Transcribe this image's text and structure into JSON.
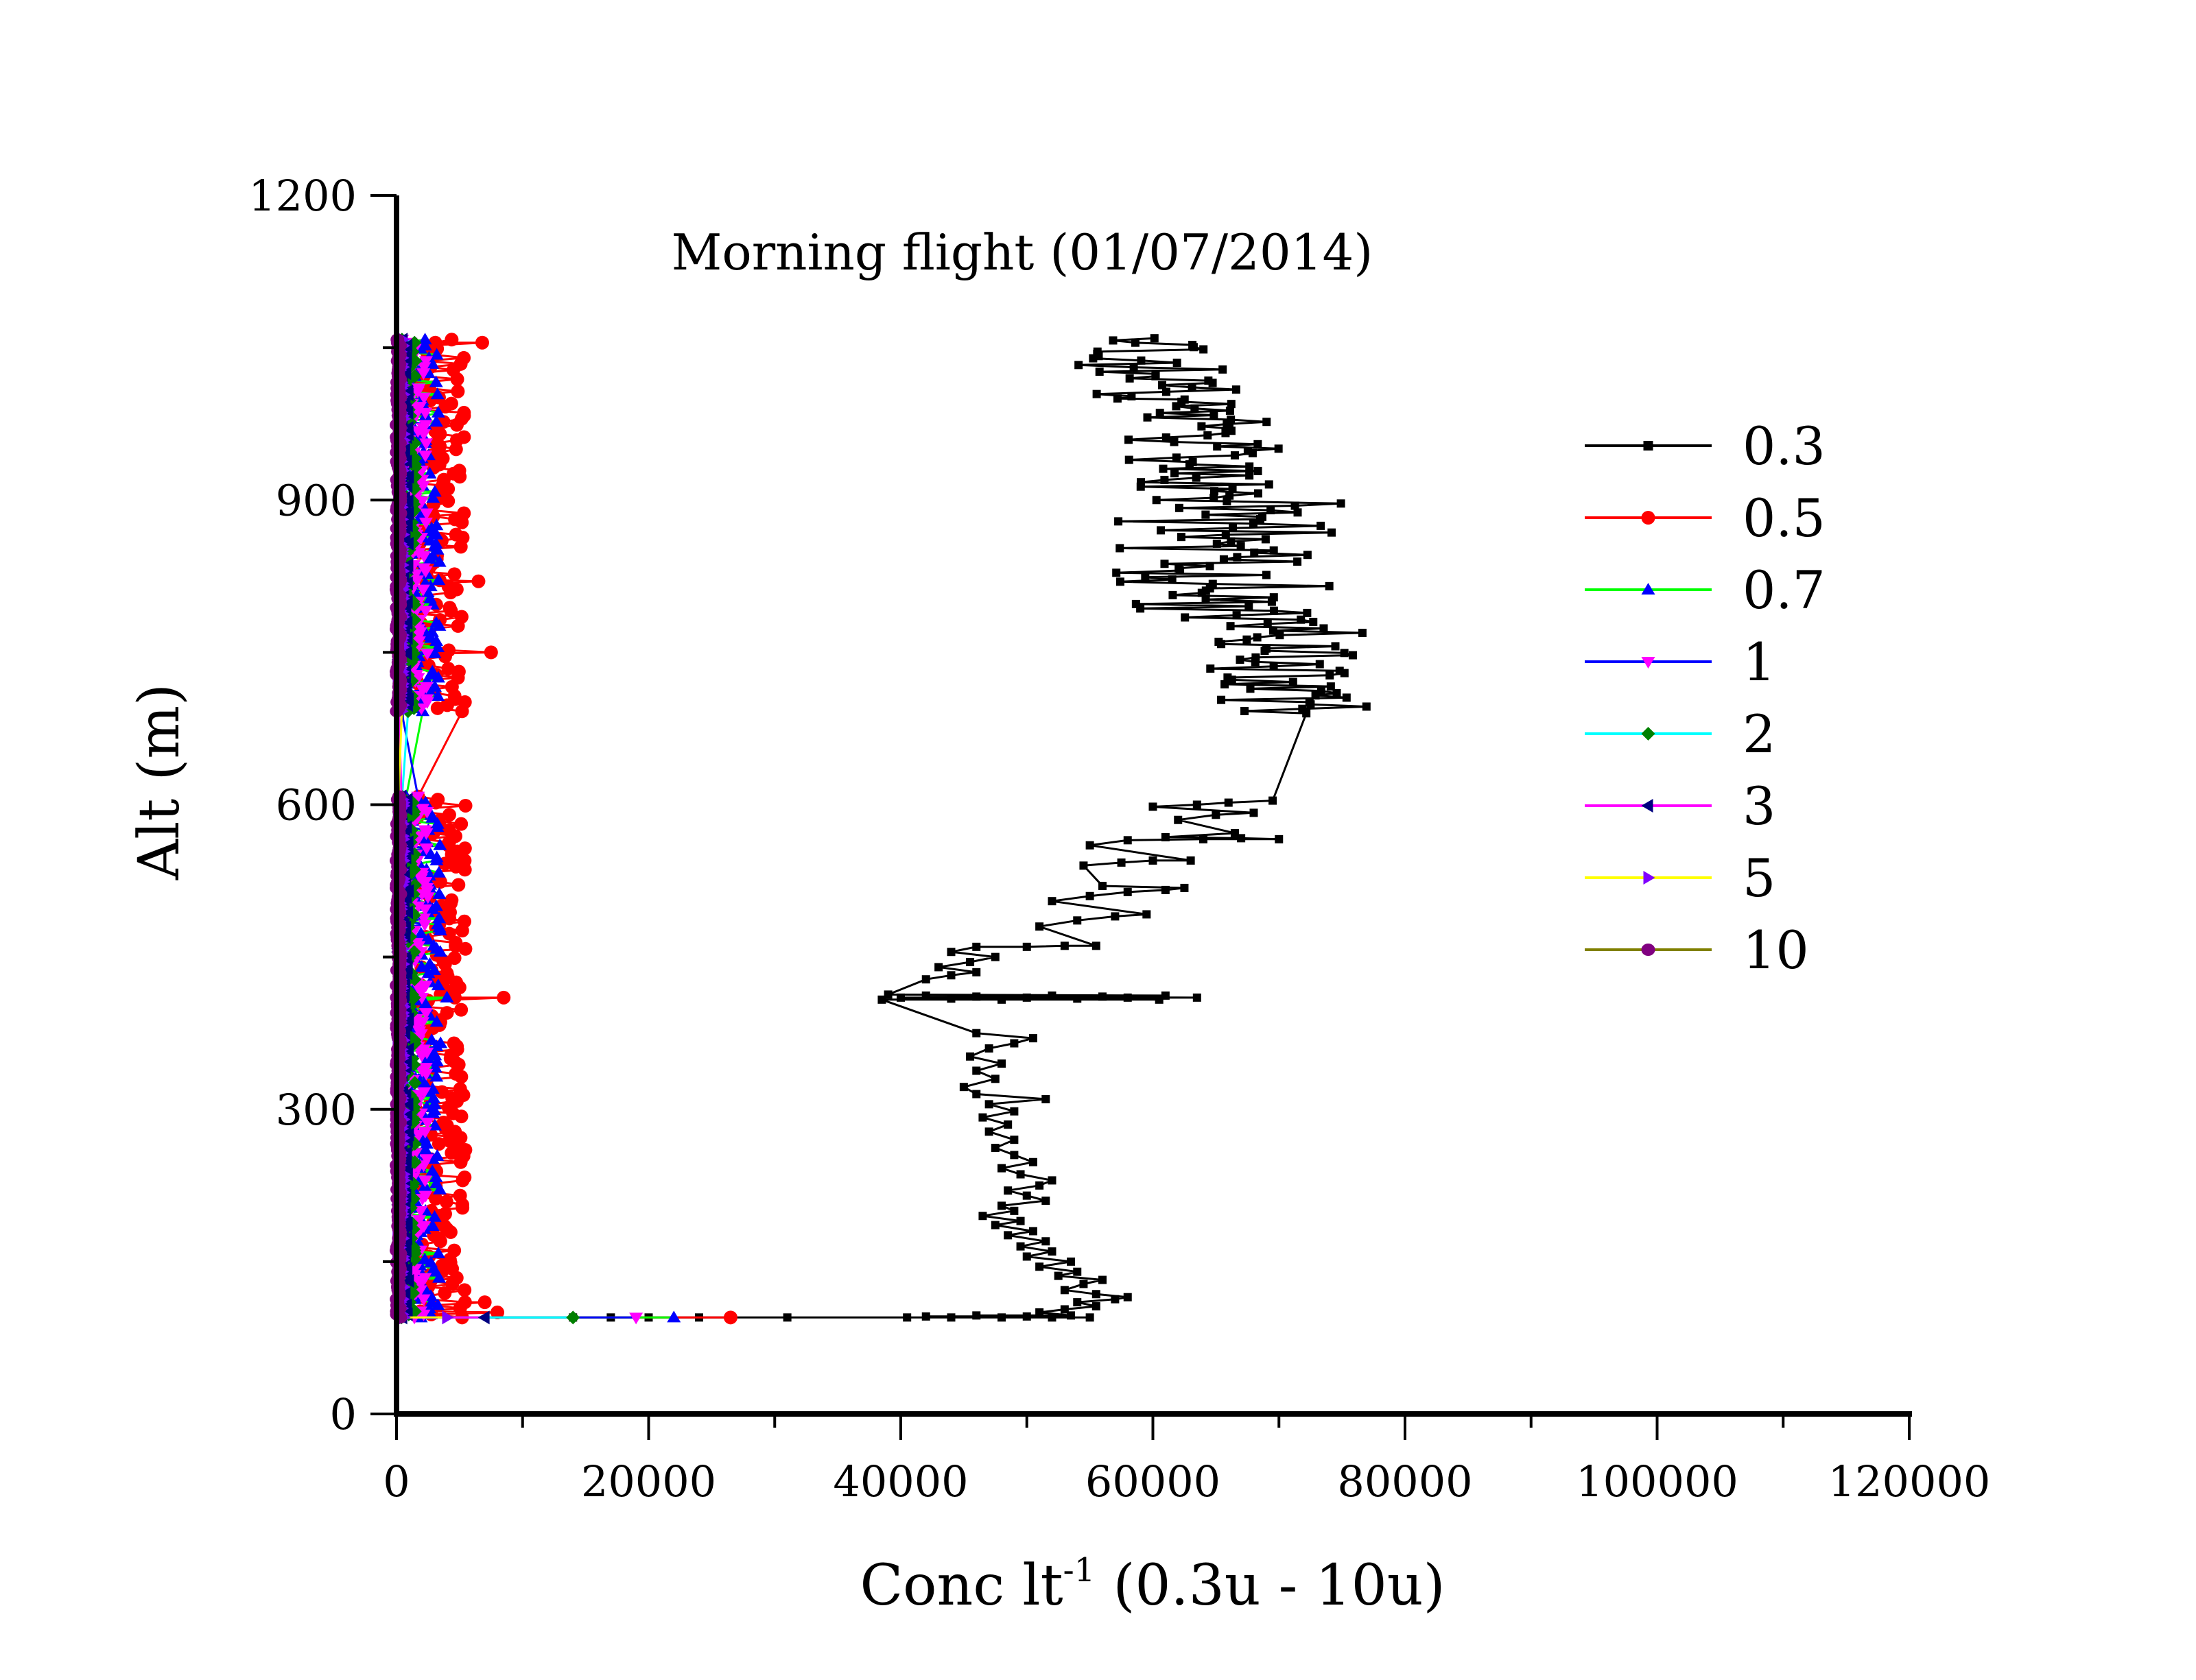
{
  "chart_data": {
    "type": "line",
    "title": "Morning flight (01/07/2014)",
    "xlabel": "Conc lt-1 (0.3u - 10u)",
    "xlabel_parts": {
      "main": "Conc lt",
      "sup": "-1",
      "rest": " (0.3u - 10u)"
    },
    "ylabel": "Alt (m)",
    "xlim": [
      0,
      120000
    ],
    "ylim": [
      0,
      1200
    ],
    "x_ticks": [
      0,
      20000,
      40000,
      60000,
      80000,
      100000,
      120000
    ],
    "x_tick_labels": [
      "0",
      "20000",
      "40000",
      "60000",
      "80000",
      "100000",
      "120000"
    ],
    "x_minor_step": 10000,
    "y_ticks": [
      0,
      300,
      600,
      900,
      1200
    ],
    "y_tick_labels": [
      "0",
      "300",
      "600",
      "900",
      "1200"
    ],
    "y_minor_step": 150,
    "grid": false,
    "legend_position": "right",
    "series": [
      {
        "name": "0.3",
        "line_color": "#000000",
        "marker": "square",
        "marker_color": "#000000",
        "points": [
          [
            14000,
            95
          ],
          [
            17000,
            95
          ],
          [
            20000,
            95
          ],
          [
            24000,
            95
          ],
          [
            31000,
            95
          ],
          [
            40500,
            95
          ],
          [
            42000,
            96
          ],
          [
            44000,
            95
          ],
          [
            46000,
            97
          ],
          [
            48000,
            95
          ],
          [
            50000,
            96
          ],
          [
            52000,
            95
          ],
          [
            53500,
            97
          ],
          [
            55000,
            95
          ],
          [
            51000,
            100
          ],
          [
            53000,
            103
          ],
          [
            55500,
            106
          ],
          [
            54000,
            110
          ],
          [
            57000,
            113
          ],
          [
            58000,
            115
          ],
          [
            55500,
            118
          ],
          [
            53000,
            122
          ],
          [
            54500,
            128
          ],
          [
            56000,
            132
          ],
          [
            52500,
            136
          ],
          [
            54000,
            140
          ],
          [
            51000,
            145
          ],
          [
            53500,
            150
          ],
          [
            50000,
            155
          ],
          [
            52000,
            160
          ],
          [
            49500,
            165
          ],
          [
            51500,
            170
          ],
          [
            48500,
            176
          ],
          [
            50500,
            180
          ],
          [
            47500,
            186
          ],
          [
            49500,
            190
          ],
          [
            46500,
            195
          ],
          [
            49000,
            200
          ],
          [
            48000,
            205
          ],
          [
            51500,
            210
          ],
          [
            50000,
            215
          ],
          [
            48500,
            220
          ],
          [
            51000,
            225
          ],
          [
            52000,
            230
          ],
          [
            49500,
            236
          ],
          [
            48000,
            242
          ],
          [
            50500,
            248
          ],
          [
            49000,
            255
          ],
          [
            47500,
            262
          ],
          [
            49000,
            270
          ],
          [
            47000,
            278
          ],
          [
            48500,
            285
          ],
          [
            46500,
            292
          ],
          [
            49000,
            298
          ],
          [
            47000,
            305
          ],
          [
            51500,
            310
          ],
          [
            46000,
            315
          ],
          [
            45000,
            322
          ],
          [
            47500,
            330
          ],
          [
            46000,
            338
          ],
          [
            48000,
            345
          ],
          [
            45500,
            352
          ],
          [
            47000,
            360
          ],
          [
            49000,
            365
          ],
          [
            50500,
            370
          ],
          [
            46000,
            375
          ],
          [
            38500,
            408
          ],
          [
            40000,
            410
          ],
          [
            42000,
            412
          ],
          [
            44000,
            409
          ],
          [
            46000,
            411
          ],
          [
            48000,
            408
          ],
          [
            50000,
            410
          ],
          [
            52000,
            412
          ],
          [
            54000,
            409
          ],
          [
            56000,
            411
          ],
          [
            58000,
            410
          ],
          [
            60500,
            408
          ],
          [
            63500,
            410
          ],
          [
            61000,
            412
          ],
          [
            39000,
            413
          ],
          [
            42000,
            428
          ],
          [
            44000,
            432
          ],
          [
            46000,
            435
          ],
          [
            43000,
            440
          ],
          [
            45500,
            445
          ],
          [
            47500,
            450
          ],
          [
            44000,
            455
          ],
          [
            46000,
            460
          ],
          [
            50000,
            460
          ],
          [
            53000,
            461
          ],
          [
            55500,
            461
          ],
          [
            51000,
            480
          ],
          [
            54000,
            486
          ],
          [
            57000,
            490
          ],
          [
            59500,
            492
          ],
          [
            52000,
            505
          ],
          [
            55000,
            510
          ],
          [
            58000,
            514
          ],
          [
            61000,
            516
          ],
          [
            62500,
            518
          ],
          [
            56000,
            520
          ],
          [
            54500,
            540
          ],
          [
            57500,
            543
          ],
          [
            60000,
            545
          ],
          [
            63000,
            545
          ],
          [
            55000,
            560
          ],
          [
            58000,
            565
          ],
          [
            61000,
            568
          ],
          [
            64000,
            566
          ],
          [
            67000,
            567
          ],
          [
            70000,
            566
          ],
          [
            66500,
            572
          ],
          [
            62000,
            585
          ],
          [
            65000,
            590
          ],
          [
            68000,
            592
          ],
          [
            60000,
            598
          ],
          [
            63500,
            600
          ],
          [
            66000,
            602
          ],
          [
            69500,
            604
          ]
        ],
        "clusters": [
          {
            "alt_range": [
              690,
              780
            ],
            "x_range": [
              63000,
              77000
            ]
          },
          {
            "alt_range": [
              780,
              900
            ],
            "x_range": [
              57000,
              75000
            ]
          },
          {
            "alt_range": [
              900,
              1000
            ],
            "x_range": [
              58000,
              70000
            ]
          },
          {
            "alt_range": [
              1000,
              1060
            ],
            "x_range": [
              54000,
              67000
            ]
          }
        ]
      },
      {
        "name": "0.5",
        "line_color": "#ff0000",
        "marker": "circle",
        "marker_color": "#ff0000",
        "points": [
          [
            26500,
            95
          ],
          [
            8000,
            100
          ],
          [
            7000,
            110
          ],
          [
            8500,
            410
          ],
          [
            5000,
            420
          ],
          [
            7500,
            750
          ],
          [
            6500,
            820
          ],
          [
            6800,
            1055
          ]
        ],
        "band": {
          "alt_range": [
            95,
            1060
          ],
          "x_range": [
            1500,
            5500
          ],
          "gap": [
            610,
            690
          ]
        }
      },
      {
        "name": "0.7",
        "line_color": "#00ff00",
        "marker": "triangle-up",
        "marker_color": "#0000ff",
        "points": [
          [
            22000,
            95
          ],
          [
            4000,
            410
          ]
        ],
        "band": {
          "alt_range": [
            95,
            1060
          ],
          "x_range": [
            500,
            3500
          ],
          "gap": [
            610,
            690
          ]
        }
      },
      {
        "name": "1",
        "line_color": "#0000ff",
        "marker": "triangle-down",
        "marker_color": "#ff00ff",
        "points": [
          [
            19000,
            95
          ]
        ],
        "band": {
          "alt_range": [
            95,
            1060
          ],
          "x_range": [
            300,
            2500
          ],
          "gap": [
            610,
            690
          ]
        }
      },
      {
        "name": "2",
        "line_color": "#00ffff",
        "marker": "diamond",
        "marker_color": "#008000",
        "points": [
          [
            14000,
            95
          ]
        ],
        "band": {
          "alt_range": [
            95,
            1060
          ],
          "x_range": [
            200,
            1500
          ],
          "gap": [
            610,
            690
          ]
        }
      },
      {
        "name": "3",
        "line_color": "#ff00ff",
        "marker": "triangle-left",
        "marker_color": "#000080",
        "points": [
          [
            7000,
            95
          ]
        ],
        "band": {
          "alt_range": [
            95,
            1060
          ],
          "x_range": [
            100,
            1000
          ],
          "gap": [
            610,
            690
          ]
        }
      },
      {
        "name": "5",
        "line_color": "#ffff00",
        "marker": "triangle-right",
        "marker_color": "#8000ff",
        "points": [
          [
            4000,
            95
          ]
        ],
        "band": {
          "alt_range": [
            95,
            1060
          ],
          "x_range": [
            50,
            600
          ],
          "gap": [
            610,
            690
          ]
        }
      },
      {
        "name": "10",
        "line_color": "#808000",
        "marker": "hexagon",
        "marker_color": "#800080",
        "points": [],
        "band": {
          "alt_range": [
            95,
            1060
          ],
          "x_range": [
            0,
            300
          ],
          "gap": [
            610,
            690
          ]
        }
      }
    ]
  }
}
